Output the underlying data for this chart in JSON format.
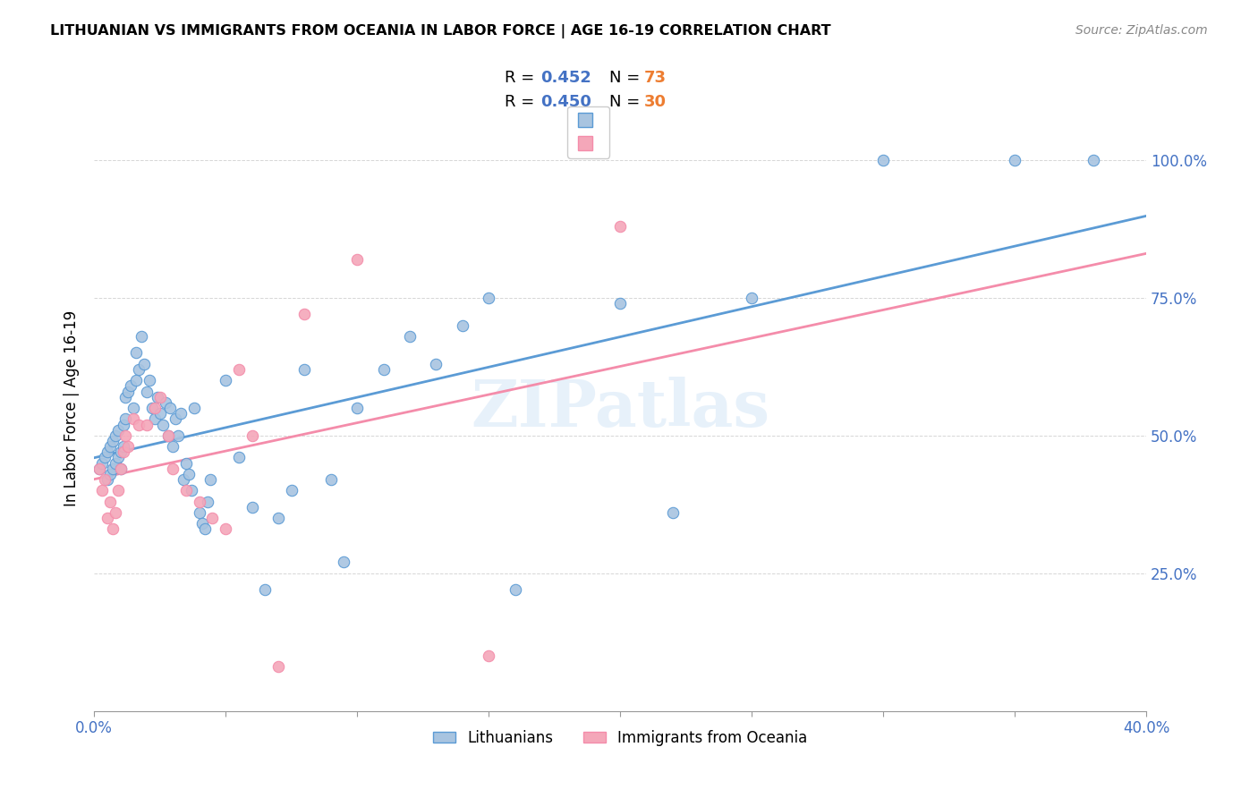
{
  "title": "LITHUANIAN VS IMMIGRANTS FROM OCEANIA IN LABOR FORCE | AGE 16-19 CORRELATION CHART",
  "source": "Source: ZipAtlas.com",
  "xlabel_bottom": "",
  "ylabel": "In Labor Force | Age 16-19",
  "xlim": [
    0.0,
    0.4
  ],
  "ylim": [
    0.0,
    1.1
  ],
  "xticks": [
    0.0,
    0.05,
    0.1,
    0.15,
    0.2,
    0.25,
    0.3,
    0.35,
    0.4
  ],
  "xtick_labels": [
    "0.0%",
    "",
    "",
    "",
    "",
    "",
    "",
    "",
    "40.0%"
  ],
  "ytick_positions": [
    0.0,
    0.25,
    0.5,
    0.75,
    1.0
  ],
  "ytick_labels": [
    "",
    "25.0%",
    "50.0%",
    "75.0%",
    "100.0%"
  ],
  "blue_color": "#a8c4e0",
  "pink_color": "#f4a7b9",
  "blue_line_color": "#5b9bd5",
  "pink_line_color": "#f48caa",
  "blue_R": 0.452,
  "blue_N": 73,
  "pink_R": 0.45,
  "pink_N": 30,
  "legend_R_color": "#4472c4",
  "legend_N_color": "#ed7d31",
  "watermark": "ZIPatlas",
  "blue_scatter_x": [
    0.002,
    0.003,
    0.004,
    0.005,
    0.005,
    0.006,
    0.006,
    0.007,
    0.007,
    0.008,
    0.008,
    0.009,
    0.009,
    0.01,
    0.01,
    0.011,
    0.011,
    0.012,
    0.012,
    0.013,
    0.014,
    0.015,
    0.016,
    0.016,
    0.017,
    0.018,
    0.019,
    0.02,
    0.021,
    0.022,
    0.023,
    0.024,
    0.025,
    0.026,
    0.027,
    0.028,
    0.029,
    0.03,
    0.031,
    0.032,
    0.033,
    0.034,
    0.035,
    0.036,
    0.037,
    0.038,
    0.04,
    0.041,
    0.042,
    0.043,
    0.044,
    0.05,
    0.055,
    0.06,
    0.065,
    0.07,
    0.075,
    0.08,
    0.09,
    0.095,
    0.1,
    0.11,
    0.12,
    0.13,
    0.14,
    0.15,
    0.16,
    0.2,
    0.22,
    0.25,
    0.3,
    0.35,
    0.38
  ],
  "blue_scatter_y": [
    0.44,
    0.45,
    0.46,
    0.42,
    0.47,
    0.43,
    0.48,
    0.44,
    0.49,
    0.45,
    0.5,
    0.46,
    0.51,
    0.47,
    0.44,
    0.52,
    0.48,
    0.57,
    0.53,
    0.58,
    0.59,
    0.55,
    0.6,
    0.65,
    0.62,
    0.68,
    0.63,
    0.58,
    0.6,
    0.55,
    0.53,
    0.57,
    0.54,
    0.52,
    0.56,
    0.5,
    0.55,
    0.48,
    0.53,
    0.5,
    0.54,
    0.42,
    0.45,
    0.43,
    0.4,
    0.55,
    0.36,
    0.34,
    0.33,
    0.38,
    0.42,
    0.6,
    0.46,
    0.37,
    0.22,
    0.35,
    0.4,
    0.62,
    0.42,
    0.27,
    0.55,
    0.62,
    0.68,
    0.63,
    0.7,
    0.75,
    0.22,
    0.74,
    0.36,
    0.75,
    1.0,
    1.0,
    1.0
  ],
  "pink_scatter_x": [
    0.002,
    0.003,
    0.004,
    0.005,
    0.006,
    0.007,
    0.008,
    0.009,
    0.01,
    0.011,
    0.012,
    0.013,
    0.015,
    0.017,
    0.02,
    0.023,
    0.025,
    0.028,
    0.03,
    0.035,
    0.04,
    0.045,
    0.05,
    0.055,
    0.06,
    0.07,
    0.08,
    0.1,
    0.15,
    0.2
  ],
  "pink_scatter_y": [
    0.44,
    0.4,
    0.42,
    0.35,
    0.38,
    0.33,
    0.36,
    0.4,
    0.44,
    0.47,
    0.5,
    0.48,
    0.53,
    0.52,
    0.52,
    0.55,
    0.57,
    0.5,
    0.44,
    0.4,
    0.38,
    0.35,
    0.33,
    0.62,
    0.5,
    0.08,
    0.72,
    0.82,
    0.1,
    0.88
  ]
}
